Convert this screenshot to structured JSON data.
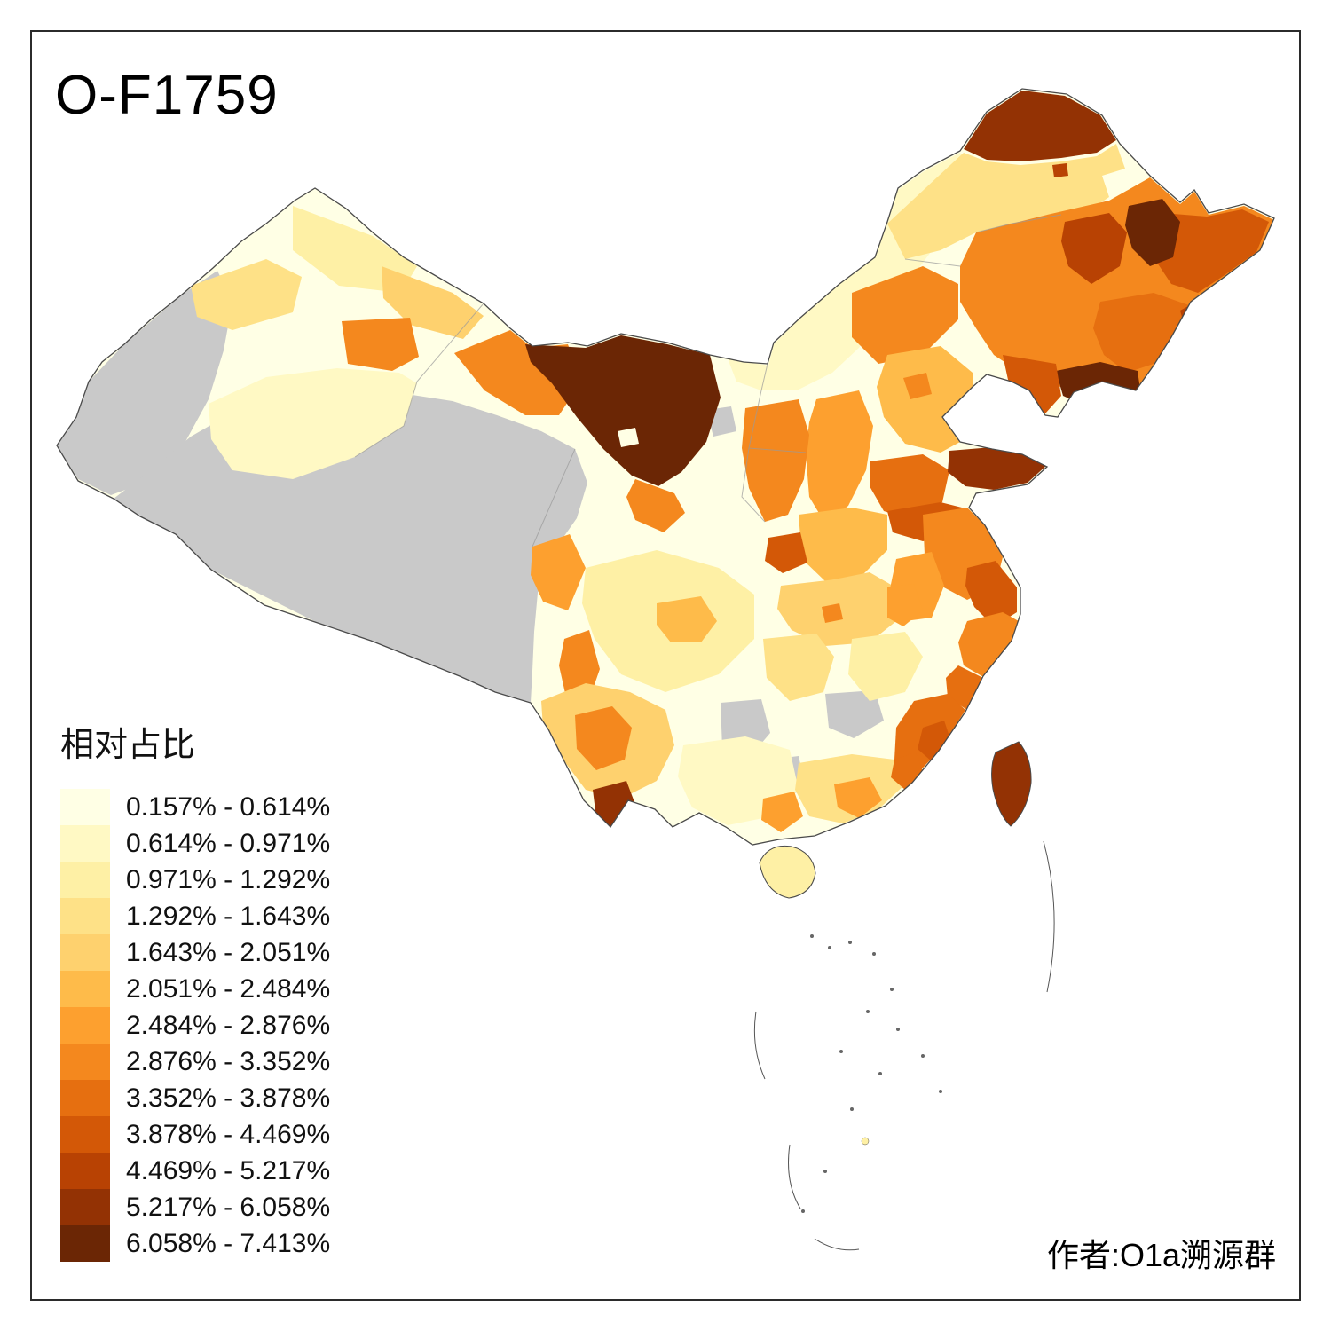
{
  "title": "O-F1759",
  "attribution": "作者:O1a溯源群",
  "legend": {
    "title": "相对占比",
    "items": [
      {
        "label": "0.157% - 0.614%",
        "color": "#FFFFE5"
      },
      {
        "label": "0.614% - 0.971%",
        "color": "#FFF9C4"
      },
      {
        "label": "0.971% - 1.292%",
        "color": "#FEF0A5"
      },
      {
        "label": "1.292% - 1.643%",
        "color": "#FEE187"
      },
      {
        "label": "1.643% - 2.051%",
        "color": "#FED16E"
      },
      {
        "label": "2.051% - 2.484%",
        "color": "#FEBB4A"
      },
      {
        "label": "2.484% - 2.876%",
        "color": "#FDA02F"
      },
      {
        "label": "2.876% - 3.352%",
        "color": "#F4881E"
      },
      {
        "label": "3.352% - 3.878%",
        "color": "#E66F10"
      },
      {
        "label": "3.878% - 4.469%",
        "color": "#D35807"
      },
      {
        "label": "4.469% - 5.217%",
        "color": "#B84203"
      },
      {
        "label": "5.217% - 6.058%",
        "color": "#933204"
      },
      {
        "label": "6.058% - 7.413%",
        "color": "#6B2605"
      }
    ]
  },
  "map": {
    "nodata_color": "#C9C9C9",
    "outline_color": "#4a4a4a",
    "interior_border_color": "#9a9a9a",
    "sea_feature_color": "#555555",
    "background": "#FFFFFF"
  }
}
